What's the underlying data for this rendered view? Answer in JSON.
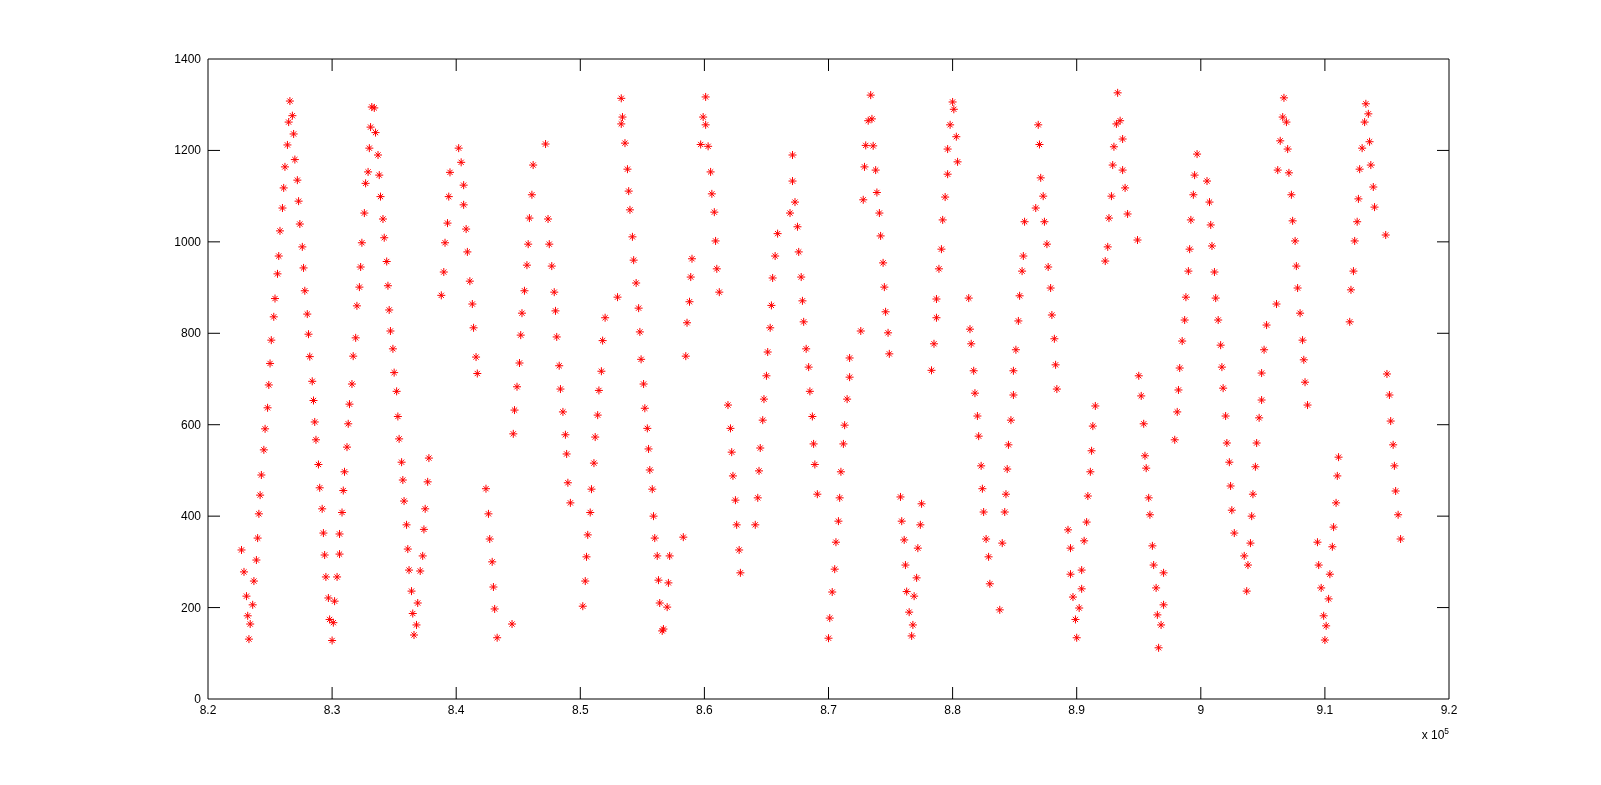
{
  "chart_data": {
    "type": "scatter",
    "color": "#ff0000",
    "marker": "cross",
    "xlim": [
      8.2,
      9.2
    ],
    "xticks": [
      8.2,
      8.3,
      8.4,
      8.5,
      8.6,
      8.7,
      8.8,
      8.9,
      9,
      9.1,
      9.2
    ],
    "ylim": [
      0,
      1400
    ],
    "yticks": [
      0,
      200,
      400,
      600,
      800,
      1000,
      1200,
      1400
    ],
    "annotations": [
      "x 10$^{5}$"
    ],
    "x": [
      8.227,
      8.229,
      8.231,
      8.232,
      8.233,
      8.234,
      8.236,
      8.237,
      8.239,
      8.24,
      8.241,
      8.242,
      8.243,
      8.245,
      8.246,
      8.248,
      8.249,
      8.25,
      8.251,
      8.253,
      8.254,
      8.256,
      8.257,
      8.258,
      8.26,
      8.261,
      8.262,
      8.264,
      8.265,
      8.266,
      8.268,
      8.269,
      8.27,
      8.272,
      8.273,
      8.274,
      8.276,
      8.277,
      8.278,
      8.28,
      8.281,
      8.282,
      8.284,
      8.285,
      8.286,
      8.287,
      8.289,
      8.29,
      8.292,
      8.293,
      8.294,
      8.295,
      8.297,
      8.298,
      8.3,
      8.301,
      8.302,
      8.304,
      8.306,
      8.306,
      8.308,
      8.309,
      8.31,
      8.312,
      8.313,
      8.314,
      8.316,
      8.317,
      8.319,
      8.32,
      8.322,
      8.323,
      8.324,
      8.326,
      8.327,
      8.329,
      8.33,
      8.331,
      8.332,
      8.334,
      8.335,
      8.337,
      8.338,
      8.339,
      8.341,
      8.342,
      8.344,
      8.345,
      8.346,
      8.347,
      8.349,
      8.35,
      8.352,
      8.353,
      8.354,
      8.356,
      8.357,
      8.358,
      8.36,
      8.361,
      8.362,
      8.364,
      8.365,
      8.366,
      8.368,
      8.369,
      8.371,
      8.373,
      8.374,
      8.375,
      8.377,
      8.378,
      8.388,
      8.39,
      8.391,
      8.393,
      8.394,
      8.395,
      8.402,
      8.404,
      8.406,
      8.406,
      8.408,
      8.409,
      8.411,
      8.413,
      8.414,
      8.416,
      8.417,
      8.424,
      8.426,
      8.427,
      8.429,
      8.43,
      8.431,
      8.433,
      8.445,
      8.446,
      8.447,
      8.449,
      8.451,
      8.452,
      8.453,
      8.455,
      8.457,
      8.458,
      8.459,
      8.461,
      8.462,
      8.472,
      8.474,
      8.475,
      8.477,
      8.479,
      8.48,
      8.481,
      8.483,
      8.484,
      8.486,
      8.488,
      8.489,
      8.49,
      8.492,
      8.502,
      8.504,
      8.505,
      8.506,
      8.508,
      8.509,
      8.511,
      8.512,
      8.514,
      8.515,
      8.517,
      8.518,
      8.52,
      8.53,
      8.533,
      8.533,
      8.534,
      8.536,
      8.538,
      8.539,
      8.54,
      8.542,
      8.543,
      8.545,
      8.547,
      8.548,
      8.549,
      8.551,
      8.552,
      8.554,
      8.555,
      8.556,
      8.558,
      8.559,
      8.56,
      8.562,
      8.563,
      8.564,
      8.566,
      8.567,
      8.57,
      8.571,
      8.572,
      8.583,
      8.585,
      8.586,
      8.588,
      8.589,
      8.59,
      8.597,
      8.599,
      8.601,
      8.601,
      8.603,
      8.605,
      8.606,
      8.608,
      8.609,
      8.61,
      8.612,
      8.619,
      8.621,
      8.622,
      8.623,
      8.625,
      8.626,
      8.628,
      8.629,
      8.641,
      8.643,
      8.644,
      8.645,
      8.647,
      8.648,
      8.65,
      8.651,
      8.653,
      8.654,
      8.655,
      8.657,
      8.659,
      8.669,
      8.671,
      8.671,
      8.673,
      8.675,
      8.676,
      8.678,
      8.679,
      8.68,
      8.682,
      8.684,
      8.685,
      8.687,
      8.688,
      8.689,
      8.691,
      8.7,
      8.701,
      8.703,
      8.705,
      8.706,
      8.708,
      8.709,
      8.71,
      8.712,
      8.713,
      8.715,
      8.717,
      8.717,
      8.726,
      8.728,
      8.729,
      8.73,
      8.732,
      8.734,
      8.735,
      8.736,
      8.738,
      8.739,
      8.741,
      8.742,
      8.744,
      8.745,
      8.746,
      8.748,
      8.749,
      8.758,
      8.759,
      8.761,
      8.762,
      8.763,
      8.765,
      8.767,
      8.768,
      8.769,
      8.771,
      8.772,
      8.774,
      8.775,
      8.783,
      8.785,
      8.787,
      8.787,
      8.789,
      8.791,
      8.792,
      8.794,
      8.796,
      8.796,
      8.798,
      8.8,
      8.801,
      8.803,
      8.804,
      8.813,
      8.814,
      8.815,
      8.817,
      8.818,
      8.82,
      8.821,
      8.823,
      8.824,
      8.825,
      8.827,
      8.829,
      8.83,
      8.838,
      8.84,
      8.842,
      8.843,
      8.844,
      8.845,
      8.847,
      8.849,
      8.849,
      8.851,
      8.853,
      8.854,
      8.856,
      8.857,
      8.858,
      8.867,
      8.869,
      8.87,
      8.871,
      8.873,
      8.874,
      8.876,
      8.877,
      8.879,
      8.88,
      8.882,
      8.883,
      8.884,
      8.893,
      8.895,
      8.895,
      8.897,
      8.899,
      8.9,
      8.902,
      8.904,
      8.904,
      8.906,
      8.908,
      8.909,
      8.911,
      8.912,
      8.913,
      8.915,
      8.923,
      8.925,
      8.926,
      8.928,
      8.929,
      8.93,
      8.932,
      8.933,
      8.935,
      8.937,
      8.937,
      8.939,
      8.941,
      8.949,
      8.95,
      8.952,
      8.954,
      8.955,
      8.956,
      8.958,
      8.959,
      8.961,
      8.962,
      8.964,
      8.965,
      8.966,
      8.968,
      8.97,
      8.97,
      8.979,
      8.981,
      8.982,
      8.983,
      8.985,
      8.987,
      8.988,
      8.99,
      8.991,
      8.992,
      8.994,
      8.995,
      8.997,
      9.005,
      9.007,
      9.008,
      9.009,
      9.011,
      9.012,
      9.014,
      9.016,
      9.017,
      9.018,
      9.02,
      9.021,
      9.023,
      9.024,
      9.025,
      9.027,
      9.035,
      9.037,
      9.038,
      9.04,
      9.041,
      9.042,
      9.044,
      9.045,
      9.047,
      9.049,
      9.049,
      9.051,
      9.053,
      9.061,
      9.062,
      9.064,
      9.066,
      9.067,
      9.069,
      9.07,
      9.071,
      9.073,
      9.074,
      9.076,
      9.077,
      9.078,
      9.08,
      9.082,
      9.083,
      9.084,
      9.086,
      9.094,
      9.095,
      9.097,
      9.099,
      9.1,
      9.101,
      9.103,
      9.104,
      9.106,
      9.107,
      9.109,
      9.11,
      9.111,
      9.12,
      9.121,
      9.123,
      9.124,
      9.126,
      9.127,
      9.128,
      9.13,
      9.132,
      9.133,
      9.135,
      9.136,
      9.137,
      9.139,
      9.14,
      9.149,
      9.15,
      9.152,
      9.153,
      9.155,
      9.156,
      9.157,
      9.159,
      9.161
    ],
    "values": [
      326,
      278,
      225,
      182,
      131,
      164,
      206,
      258,
      304,
      352,
      405,
      446,
      490,
      545,
      591,
      637,
      687,
      734,
      785,
      836,
      876,
      930,
      969,
      1024,
      1074,
      1118,
      1164,
      1212,
      1262,
      1308,
      1276,
      1236,
      1180,
      1135,
      1089,
      1039,
      989,
      943,
      893,
      842,
      798,
      749,
      695,
      653,
      606,
      567,
      513,
      462,
      416,
      363,
      315,
      267,
      221,
      174,
      128,
      167,
      214,
      267,
      317,
      361,
      408,
      456,
      497,
      551,
      602,
      645,
      689,
      750,
      790,
      860,
      901,
      945,
      998,
      1063,
      1128,
      1153,
      1205,
      1251,
      1295,
      1293,
      1239,
      1190,
      1146,
      1099,
      1050,
      1009,
      957,
      904,
      851,
      805,
      766,
      714,
      673,
      618,
      569,
      518,
      479,
      433,
      381,
      328,
      282,
      236,
      187,
      140,
      162,
      210,
      280,
      313,
      371,
      416,
      475,
      527,
      883,
      934,
      998,
      1041,
      1099,
      1152,
      1205,
      1174,
      1124,
      1081,
      1028,
      978,
      914,
      864,
      812,
      748,
      712,
      460,
      405,
      350,
      300,
      245,
      197,
      134,
      164,
      580,
      632,
      683,
      735,
      796,
      844,
      893,
      949,
      995,
      1052,
      1103,
      1168,
      1214,
      1050,
      995,
      947,
      890,
      849,
      792,
      729,
      678,
      628,
      578,
      536,
      473,
      429,
      203,
      258,
      311,
      359,
      408,
      459,
      516,
      573,
      621,
      675,
      717,
      784,
      834,
      879,
      1258,
      1314,
      1273,
      1216,
      1159,
      1111,
      1070,
      1011,
      960,
      910,
      855,
      803,
      743,
      689,
      636,
      592,
      547,
      501,
      459,
      400,
      352,
      313,
      260,
      210,
      149,
      153,
      201,
      254,
      313,
      354,
      750,
      823,
      869,
      923,
      963,
      1213,
      1273,
      1317,
      1256,
      1209,
      1153,
      1105,
      1065,
      1002,
      941,
      890,
      643,
      592,
      540,
      488,
      435,
      381,
      326,
      276,
      381,
      440,
      499,
      549,
      610,
      656,
      707,
      759,
      812,
      861,
      921,
      969,
      1018,
      1063,
      1190,
      1133,
      1087,
      1033,
      978,
      923,
      871,
      825,
      766,
      726,
      673,
      618,
      558,
      513,
      448,
      133,
      177,
      234,
      284,
      343,
      389,
      440,
      497,
      558,
      599,
      656,
      704,
      746,
      805,
      1092,
      1164,
      1211,
      1265,
      1321,
      1269,
      1210,
      1157,
      1108,
      1063,
      1013,
      954,
      901,
      847,
      801,
      755,
      442,
      389,
      348,
      293,
      235,
      190,
      138,
      162,
      225,
      265,
      330,
      381,
      427,
      719,
      777,
      834,
      875,
      941,
      984,
      1048,
      1098,
      1148,
      1203,
      1256,
      1306,
      1290,
      1230,
      1175,
      877,
      809,
      777,
      718,
      669,
      619,
      575,
      510,
      460,
      409,
      350,
      311,
      252,
      195,
      341,
      409,
      448,
      503,
      556,
      610,
      665,
      718,
      764,
      827,
      882,
      936,
      969,
      1044,
      1074,
      1256,
      1213,
      1140,
      1100,
      1044,
      995,
      945,
      899,
      840,
      788,
      731,
      678,
      370,
      330,
      273,
      223,
      174,
      134,
      199,
      241,
      282,
      346,
      387,
      444,
      497,
      543,
      597,
      641,
      958,
      989,
      1052,
      1100,
      1168,
      1208,
      1258,
      1326,
      1265,
      1225,
      1157,
      1118,
      1061,
      1004,
      707,
      663,
      602,
      532,
      505,
      440,
      403,
      335,
      293,
      243,
      184,
      112,
      162,
      206,
      276,
      567,
      628,
      676,
      724,
      783,
      829,
      879,
      936,
      984,
      1048,
      1103,
      1146,
      1192,
      1133,
      1087,
      1037,
      991,
      934,
      877,
      829,
      774,
      726,
      680,
      619,
      560,
      518,
      466,
      413,
      363,
      313,
      236,
      293,
      341,
      400,
      448,
      508,
      560,
      615,
      654,
      713,
      764,
      818,
      864,
      1157,
      1221,
      1273,
      1315,
      1262,
      1203,
      1151,
      1103,
      1046,
      1002,
      947,
      899,
      844,
      785,
      742,
      693,
      643,
      343,
      293,
      243,
      182,
      129,
      160,
      219,
      273,
      333,
      376,
      429,
      488,
      529,
      825,
      895,
      936,
      1002,
      1044,
      1094,
      1159,
      1205,
      1262,
      1302,
      1280,
      1219,
      1168,
      1120,
      1076,
      1015,
      711,
      665,
      608,
      556,
      510,
      455,
      403,
      350
    ]
  }
}
